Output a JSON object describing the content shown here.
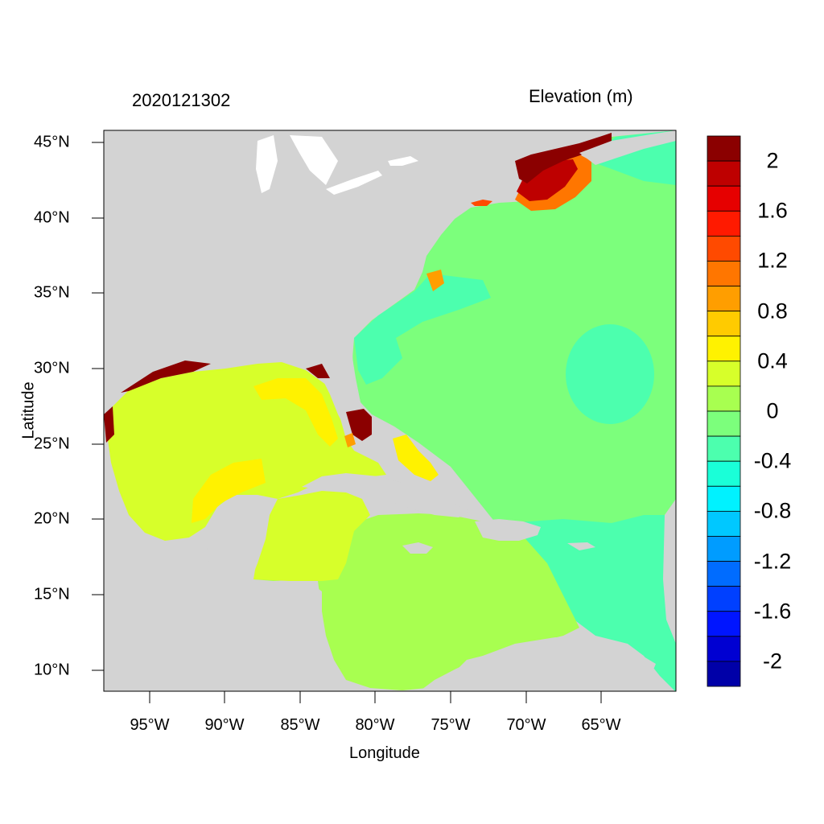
{
  "title_left": "2020121302",
  "title_right": "Elevation (m)",
  "xlabel": "Longitude",
  "ylabel": "Latitude",
  "lon_ticks": [
    "95°W",
    "90°W",
    "85°W",
    "80°W",
    "75°W",
    "70°W",
    "65°W"
  ],
  "lat_ticks": [
    "45°N",
    "40°N",
    "35°N",
    "30°N",
    "25°N",
    "20°N",
    "15°N",
    "10°N"
  ],
  "colorbar": {
    "labels": [
      "2",
      "1.6",
      "1.2",
      "0.8",
      "0.4",
      "0",
      "-0.4",
      "-0.8",
      "-1.2",
      "-1.6",
      "-2"
    ],
    "colors": [
      "#8B0000",
      "#BE0000",
      "#E60000",
      "#FF1A00",
      "#FF4A00",
      "#FF7600",
      "#FF9E00",
      "#FFCB00",
      "#FFF200",
      "#D7FF2A",
      "#A8FF50",
      "#7CFF7C",
      "#4CFFAE",
      "#1AFFD8",
      "#00F2FF",
      "#00C8FF",
      "#009CFF",
      "#006CFF",
      "#0040FF",
      "#0015FF",
      "#0000D2",
      "#0000A8"
    ]
  },
  "colors": {
    "land": "#D3D3D3",
    "ocean_atlantic": "#7CFF7C",
    "ocean_nw": "#4CFFAE",
    "gulf": "#D7FF2A",
    "caribbean": "#A8FF50",
    "positive_surge": "#8B0000"
  }
}
